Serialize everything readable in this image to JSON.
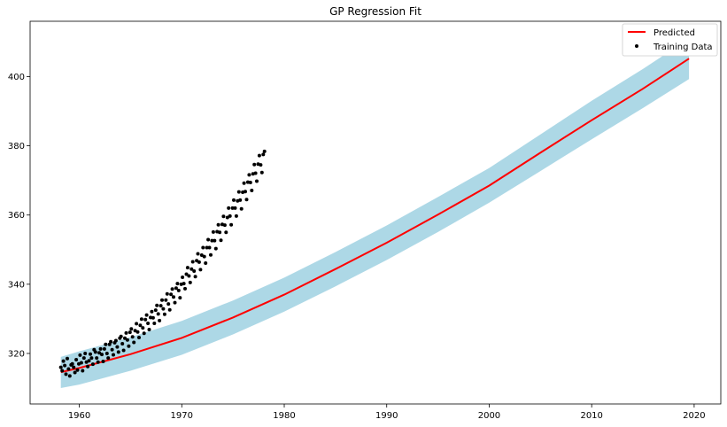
{
  "chart_data": {
    "type": "line",
    "title": "GP Regression Fit",
    "xlabel": "",
    "ylabel": "",
    "xlim": [
      1955.2,
      2022.6
    ],
    "ylim": [
      305.4,
      416.0
    ],
    "xticks": [
      1960,
      1970,
      1980,
      1990,
      2000,
      2010,
      2020
    ],
    "yticks": [
      320,
      340,
      360,
      380,
      400
    ],
    "grid": false,
    "legend_position": "top-right",
    "colors": {
      "predicted": "#ff0000",
      "band": "#add8e6",
      "training": "#000000"
    },
    "series": [
      {
        "name": "Predicted",
        "kind": "line",
        "x": [
          1958.2,
          1960,
          1965,
          1970,
          1975,
          1980,
          1985,
          1990,
          1995,
          2000,
          2005,
          2010,
          2015,
          2019.5
        ],
        "y": [
          314.6,
          315.8,
          319.8,
          324.5,
          330.4,
          337.0,
          344.4,
          352.0,
          360.1,
          368.5,
          378.0,
          387.4,
          396.5,
          405.2
        ]
      },
      {
        "name": "confidence band",
        "kind": "band",
        "x": [
          1958.2,
          1960,
          1965,
          1970,
          1975,
          1980,
          1985,
          1990,
          1995,
          2000,
          2005,
          2010,
          2015,
          2019.5
        ],
        "lower": [
          310.0,
          311.0,
          315.0,
          319.6,
          325.5,
          332.1,
          339.4,
          347.0,
          355.1,
          363.6,
          372.7,
          381.9,
          390.9,
          399.3
        ],
        "upper": [
          319.0,
          320.6,
          324.7,
          329.4,
          335.3,
          341.9,
          349.3,
          357.0,
          365.2,
          373.6,
          383.3,
          393.0,
          402.2,
          411.0
        ]
      },
      {
        "name": "Training Data",
        "kind": "scatter",
        "x_start": 1958.2,
        "x_step": 0.125,
        "y": [
          316.0,
          315.0,
          317.8,
          316.5,
          314.0,
          318.5,
          315.5,
          313.5,
          316.7,
          317.0,
          316.0,
          314.5,
          318.2,
          315.2,
          317.0,
          319.5,
          317.3,
          315.0,
          318.7,
          320.0,
          317.5,
          316.2,
          317.9,
          319.8,
          318.7,
          316.9,
          321.1,
          320.4,
          318.7,
          317.5,
          320.2,
          321.3,
          319.7,
          317.7,
          321.3,
          322.6,
          320.0,
          318.7,
          322.6,
          323.4,
          321.1,
          319.6,
          323.1,
          323.7,
          321.9,
          320.4,
          324.4,
          324.9,
          322.8,
          320.9,
          324.4,
          325.9,
          323.9,
          322.1,
          326.1,
          327.1,
          324.8,
          323.2,
          326.6,
          328.6,
          326.2,
          324.6,
          328.1,
          329.9,
          327.4,
          325.8,
          329.8,
          331.1,
          328.7,
          326.9,
          330.4,
          332.1,
          330.3,
          328.7,
          332.5,
          333.9,
          331.4,
          329.5,
          333.8,
          335.4,
          332.9,
          331.3,
          335.4,
          337.2,
          334.3,
          332.6,
          337.1,
          338.6,
          336.3,
          334.7,
          338.9,
          340.2,
          338.2,
          336.1,
          340.0,
          342.0,
          340.2,
          338.7,
          342.9,
          344.8,
          342.4,
          340.5,
          344.4,
          346.5,
          343.8,
          342.2,
          346.8,
          348.8,
          346.4,
          344.2,
          348.4,
          350.6,
          348.0,
          346.1,
          350.6,
          352.9,
          350.6,
          348.5,
          352.6,
          355.1,
          352.6,
          350.3,
          355.2,
          357.2,
          355.0,
          352.7,
          357.3,
          359.6,
          357.1,
          355.0,
          359.3,
          362.0,
          359.7,
          357.2,
          362.0,
          364.3,
          362.0,
          359.7,
          364.1,
          366.7,
          364.3,
          361.8,
          366.6,
          369.2,
          366.8,
          364.5,
          369.5,
          371.6,
          369.4,
          367.1,
          371.9,
          374.6,
          372.1,
          369.8,
          374.7,
          377.2,
          374.5,
          372.3,
          377.5,
          378.4
        ]
      }
    ]
  }
}
